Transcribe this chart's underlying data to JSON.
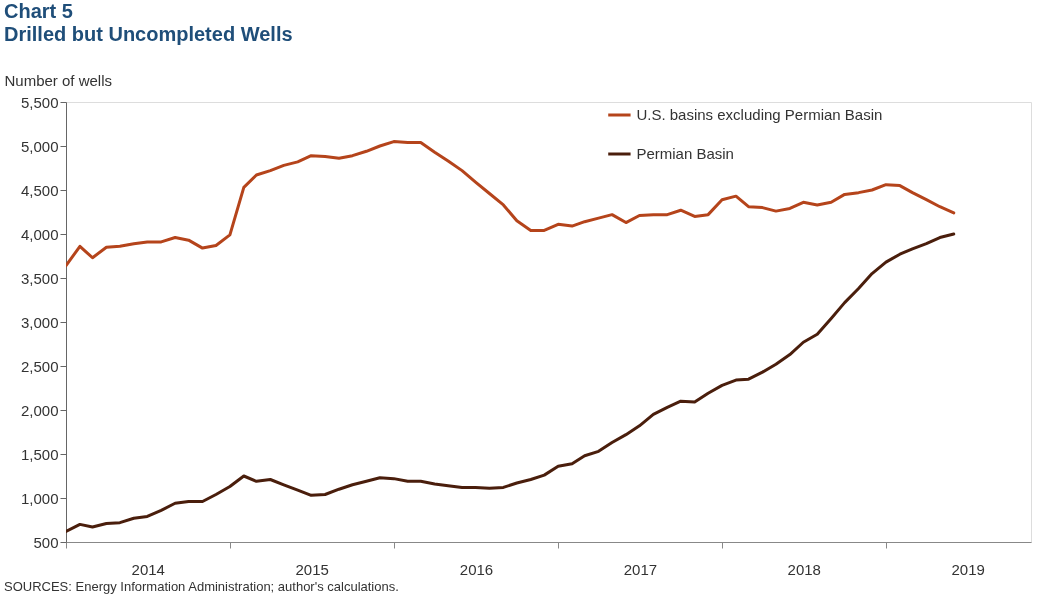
{
  "chart_data": {
    "type": "line",
    "title": "Chart 5",
    "subtitle": "Drilled but Uncompleted Wells",
    "ylabel": "Number of wells",
    "annotations": [
      "SOURCES:  Energy Information Administration;  author's calculations."
    ],
    "x": [
      "2014-01",
      "2014-02",
      "2014-03",
      "2014-04",
      "2014-05",
      "2014-06",
      "2014-07",
      "2014-08",
      "2014-09",
      "2014-10",
      "2014-11",
      "2014-12",
      "2015-01",
      "2015-02",
      "2015-03",
      "2015-04",
      "2015-05",
      "2015-06",
      "2015-07",
      "2015-08",
      "2015-09",
      "2015-10",
      "2015-11",
      "2015-12",
      "2016-01",
      "2016-02",
      "2016-03",
      "2016-04",
      "2016-05",
      "2016-06",
      "2016-07",
      "2016-08",
      "2016-09",
      "2016-10",
      "2016-11",
      "2016-12",
      "2017-01",
      "2017-02",
      "2017-03",
      "2017-04",
      "2017-05",
      "2017-06",
      "2017-07",
      "2017-08",
      "2017-09",
      "2017-10",
      "2017-11",
      "2017-12",
      "2018-01",
      "2018-02",
      "2018-03",
      "2018-04",
      "2018-05",
      "2018-06",
      "2018-07",
      "2018-08",
      "2018-09",
      "2018-10",
      "2018-11",
      "2018-12",
      "2019-01",
      "2019-02",
      "2019-03",
      "2019-04",
      "2019-05",
      "2019-06"
    ],
    "series": [
      {
        "name": "U.S. basins excluding Permian Basin",
        "color": "#b5441b",
        "values": [
          3640,
          3860,
          3730,
          3850,
          3860,
          3890,
          3910,
          3910,
          3960,
          3930,
          3840,
          3870,
          3990,
          4530,
          4670,
          4720,
          4780,
          4820,
          4890,
          4880,
          4860,
          4890,
          4940,
          5000,
          5050,
          5040,
          5040,
          4930,
          4830,
          4720,
          4590,
          4460,
          4330,
          4150,
          4040,
          4040,
          4110,
          4090,
          4140,
          4180,
          4220,
          4130,
          4210,
          4220,
          4220,
          4270,
          4200,
          4220,
          4390,
          4430,
          4310,
          4300,
          4260,
          4290,
          4360,
          4330,
          4360,
          4450,
          4470,
          4500,
          4560,
          4550,
          4470,
          4390,
          4310,
          4240
        ]
      },
      {
        "name": "Permian Basin",
        "color": "#4a1e0c",
        "values": [
          620,
          700,
          670,
          710,
          720,
          770,
          790,
          860,
          940,
          960,
          960,
          1040,
          1130,
          1250,
          1190,
          1210,
          1150,
          1090,
          1030,
          1040,
          1100,
          1150,
          1190,
          1230,
          1220,
          1190,
          1190,
          1160,
          1140,
          1120,
          1120,
          1110,
          1120,
          1170,
          1210,
          1260,
          1360,
          1390,
          1480,
          1530,
          1630,
          1720,
          1820,
          1950,
          2030,
          2100,
          2090,
          2190,
          2280,
          2340,
          2350,
          2430,
          2520,
          2630,
          2770,
          2860,
          3040,
          3220,
          3380,
          3550,
          3680,
          3770,
          3830,
          3890,
          3960,
          4000
        ]
      }
    ],
    "xlim": [
      "2014-01-01",
      "2019-11-20"
    ],
    "xticks": [
      {
        "value": "2014-01-01",
        "label": null
      },
      {
        "value": "2014-07-02",
        "label": "2014"
      },
      {
        "value": "2015-01-01",
        "label": null
      },
      {
        "value": "2015-07-02",
        "label": "2015"
      },
      {
        "value": "2016-01-01",
        "label": null
      },
      {
        "value": "2016-07-02",
        "label": "2016"
      },
      {
        "value": "2017-01-01",
        "label": null
      },
      {
        "value": "2017-07-02",
        "label": "2017"
      },
      {
        "value": "2018-01-01",
        "label": null
      },
      {
        "value": "2018-07-02",
        "label": "2018"
      },
      {
        "value": "2019-01-01",
        "label": null
      },
      {
        "value": "2019-07-02",
        "label": "2019"
      }
    ],
    "ylim": [
      500,
      5500
    ],
    "yticks": [
      500,
      {
        "value": 1000,
        "label": "1,000"
      },
      {
        "value": 1500,
        "label": "1,500"
      },
      {
        "value": 2000,
        "label": "2,000"
      },
      {
        "value": 2500,
        "label": "2,500"
      },
      {
        "value": 3000,
        "label": "3,000"
      },
      {
        "value": 3500,
        "label": "3,500"
      },
      {
        "value": 4000,
        "label": "4,000"
      },
      {
        "value": 4500,
        "label": "4,500"
      },
      {
        "value": 5000,
        "label": "5,000"
      },
      {
        "value": 5500,
        "label": "5,500"
      }
    ],
    "grid": false,
    "legend": "top right",
    "marker": "none",
    "line_style": "solid"
  }
}
